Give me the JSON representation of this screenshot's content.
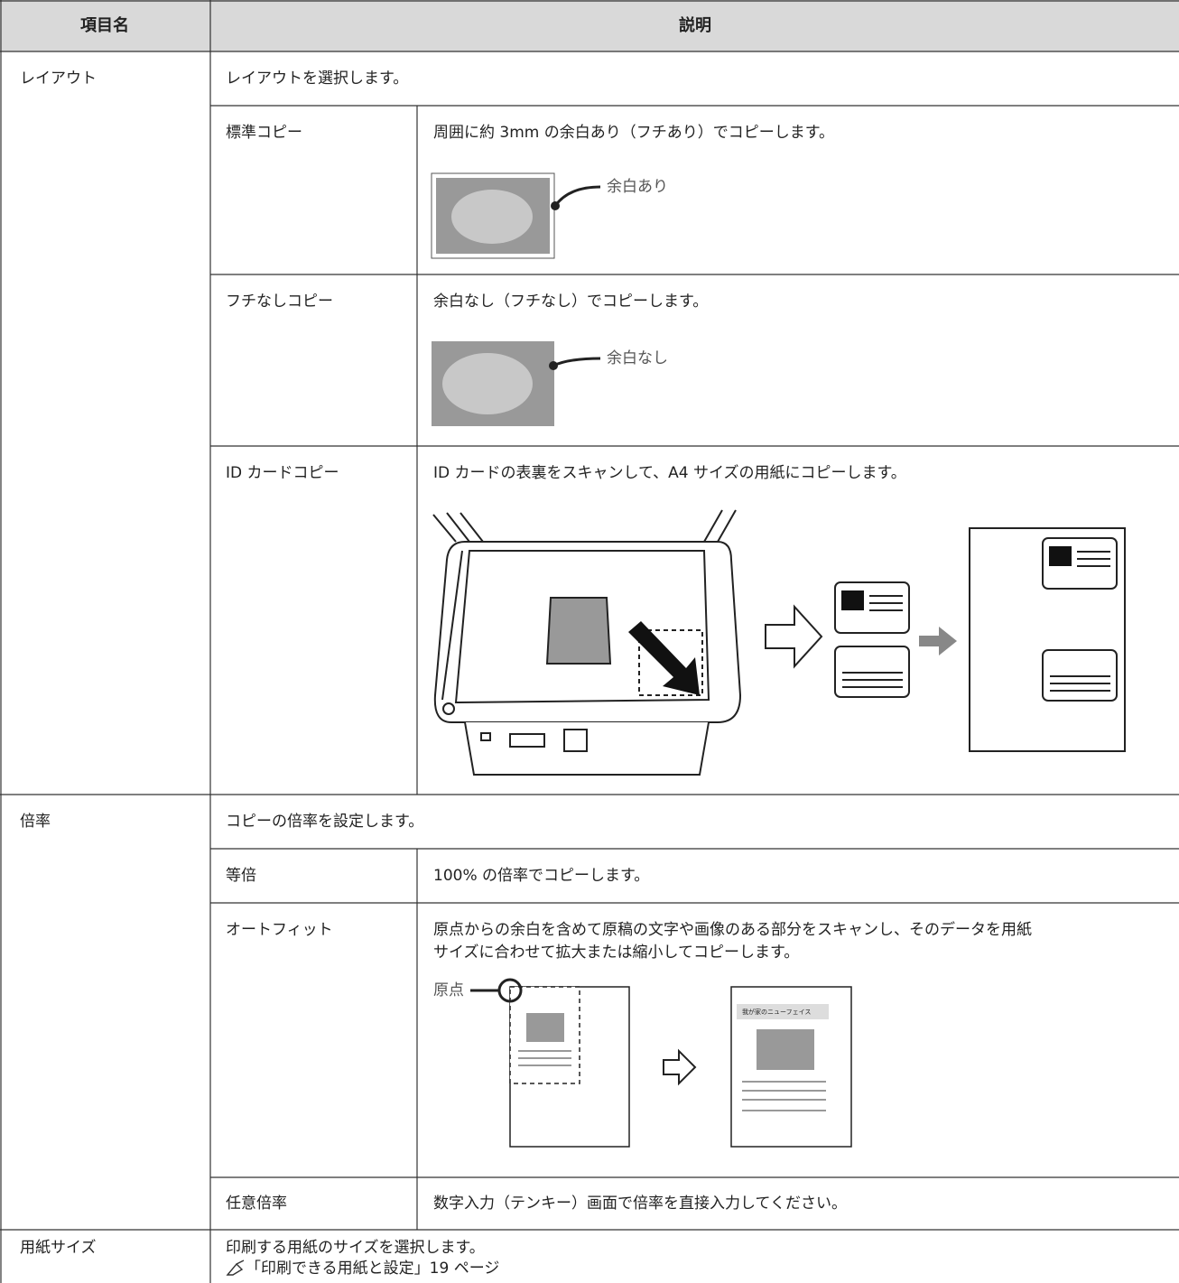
{
  "table": {
    "header": [
      "項目名",
      "説明"
    ],
    "sections": [
      {
        "name": "レイアウト",
        "description": "レイアウトを選択します。",
        "items": [
          {
            "name": "標準コピー",
            "description": "周囲に約 3mm の余白あり（フチあり）でコピーします。",
            "callout": "余白あり"
          },
          {
            "name": "フチなしコピー",
            "description": "余白なし（フチなし）でコピーします。",
            "callout": "余白なし"
          },
          {
            "name": "ID カードコピー",
            "description": "ID カードの表裏をスキャンして、A4 サイズの用紙にコピーします。"
          }
        ]
      },
      {
        "name": "倍率",
        "description": "コピーの倍率を設定します。",
        "items": [
          {
            "name": "等倍",
            "description": "100% の倍率でコピーします。"
          },
          {
            "name": "オートフィット",
            "description": [
              "原点からの余白を含めて原稿の文字や画像のある部分をスキャンし、そのデータを用紙",
              "サイズに合わせて拡大または縮小してコピーします。"
            ],
            "origin_label": "原点",
            "sample_heading": "我が家のニューフェイス"
          },
          {
            "name": "任意倍率",
            "description": "数字入力（テンキー）画面で倍率を直接入力してください。"
          }
        ]
      },
      {
        "name": "用紙サイズ",
        "description": "印刷する用紙のサイズを選択します。",
        "reference": "「印刷できる用紙と設定」19 ページ"
      }
    ]
  }
}
